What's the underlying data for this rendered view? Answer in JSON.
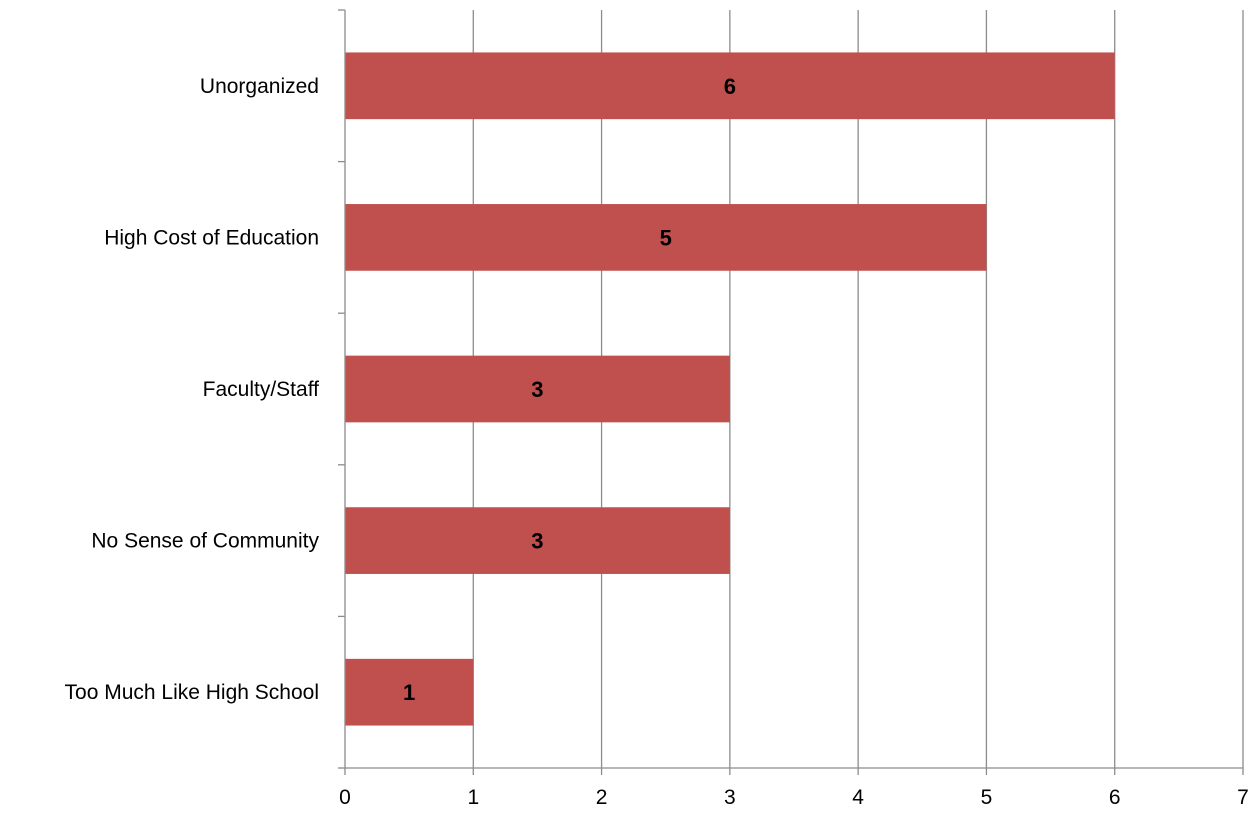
{
  "chart_data": {
    "type": "bar",
    "orientation": "horizontal",
    "categories": [
      "Unorganized",
      "High Cost of Education",
      "Faculty/Staff",
      "No Sense of Community",
      "Too Much Like High School"
    ],
    "values": [
      6,
      5,
      3,
      3,
      1
    ],
    "data_labels": [
      "6",
      "5",
      "3",
      "3",
      "1"
    ],
    "xlim": [
      0,
      7
    ],
    "x_ticks": [
      "0",
      "1",
      "2",
      "3",
      "4",
      "5",
      "6",
      "7"
    ],
    "title": "",
    "xlabel": "",
    "ylabel": "",
    "grid": "vertical",
    "legend": "none",
    "bar_color": "#c0504d"
  }
}
